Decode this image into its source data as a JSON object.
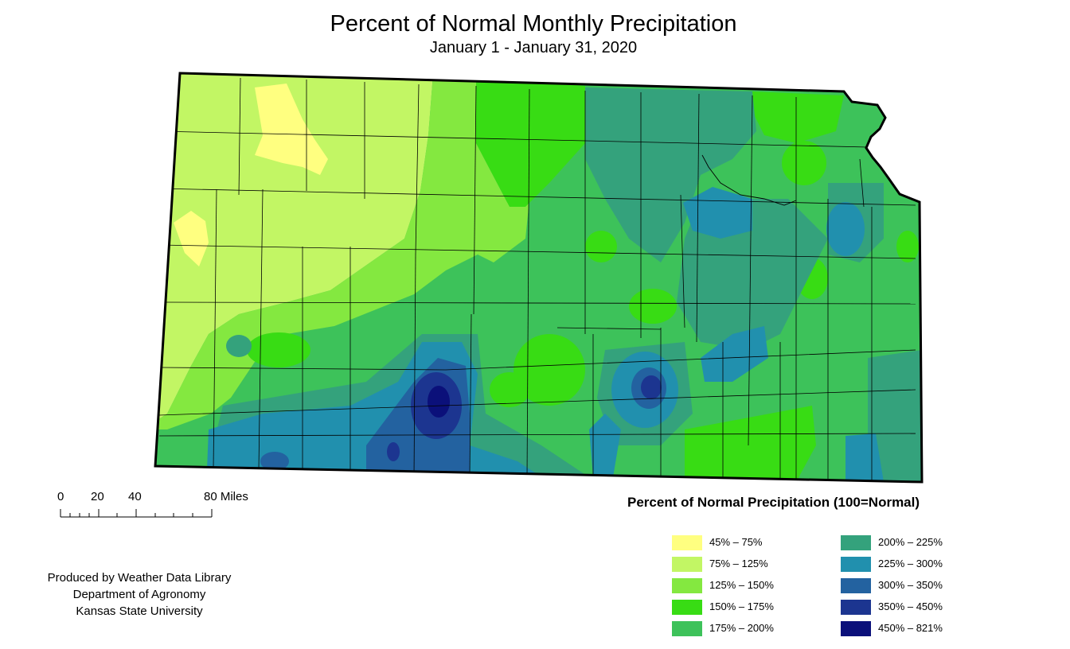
{
  "header": {
    "title": "Percent of Normal Monthly Precipitation",
    "subtitle": "January 1 - January 31, 2020"
  },
  "scale": {
    "labels": [
      "0",
      "20",
      "40",
      "80 Miles"
    ]
  },
  "legend": {
    "title": "Percent of Normal Precipitation (100=Normal)",
    "items": [
      {
        "label": "45% – 75%",
        "color": "#FFFF80"
      },
      {
        "label": "75% – 125%",
        "color": "#C2F664"
      },
      {
        "label": "125% – 150%",
        "color": "#84E840"
      },
      {
        "label": "150% – 175%",
        "color": "#38DC14"
      },
      {
        "label": "175% – 200%",
        "color": "#3DC25A"
      },
      {
        "label": "200% – 225%",
        "color": "#34A27C"
      },
      {
        "label": "225% – 300%",
        "color": "#2190AE"
      },
      {
        "label": "300% – 350%",
        "color": "#2362A0"
      },
      {
        "label": "350% – 450%",
        "color": "#1C3590"
      },
      {
        "label": "450% – 821%",
        "color": "#0B107A"
      }
    ]
  },
  "credits": {
    "line1": "Produced by Weather Data Library",
    "line2": "Department of Agronomy",
    "line3": "Kansas State University"
  }
}
